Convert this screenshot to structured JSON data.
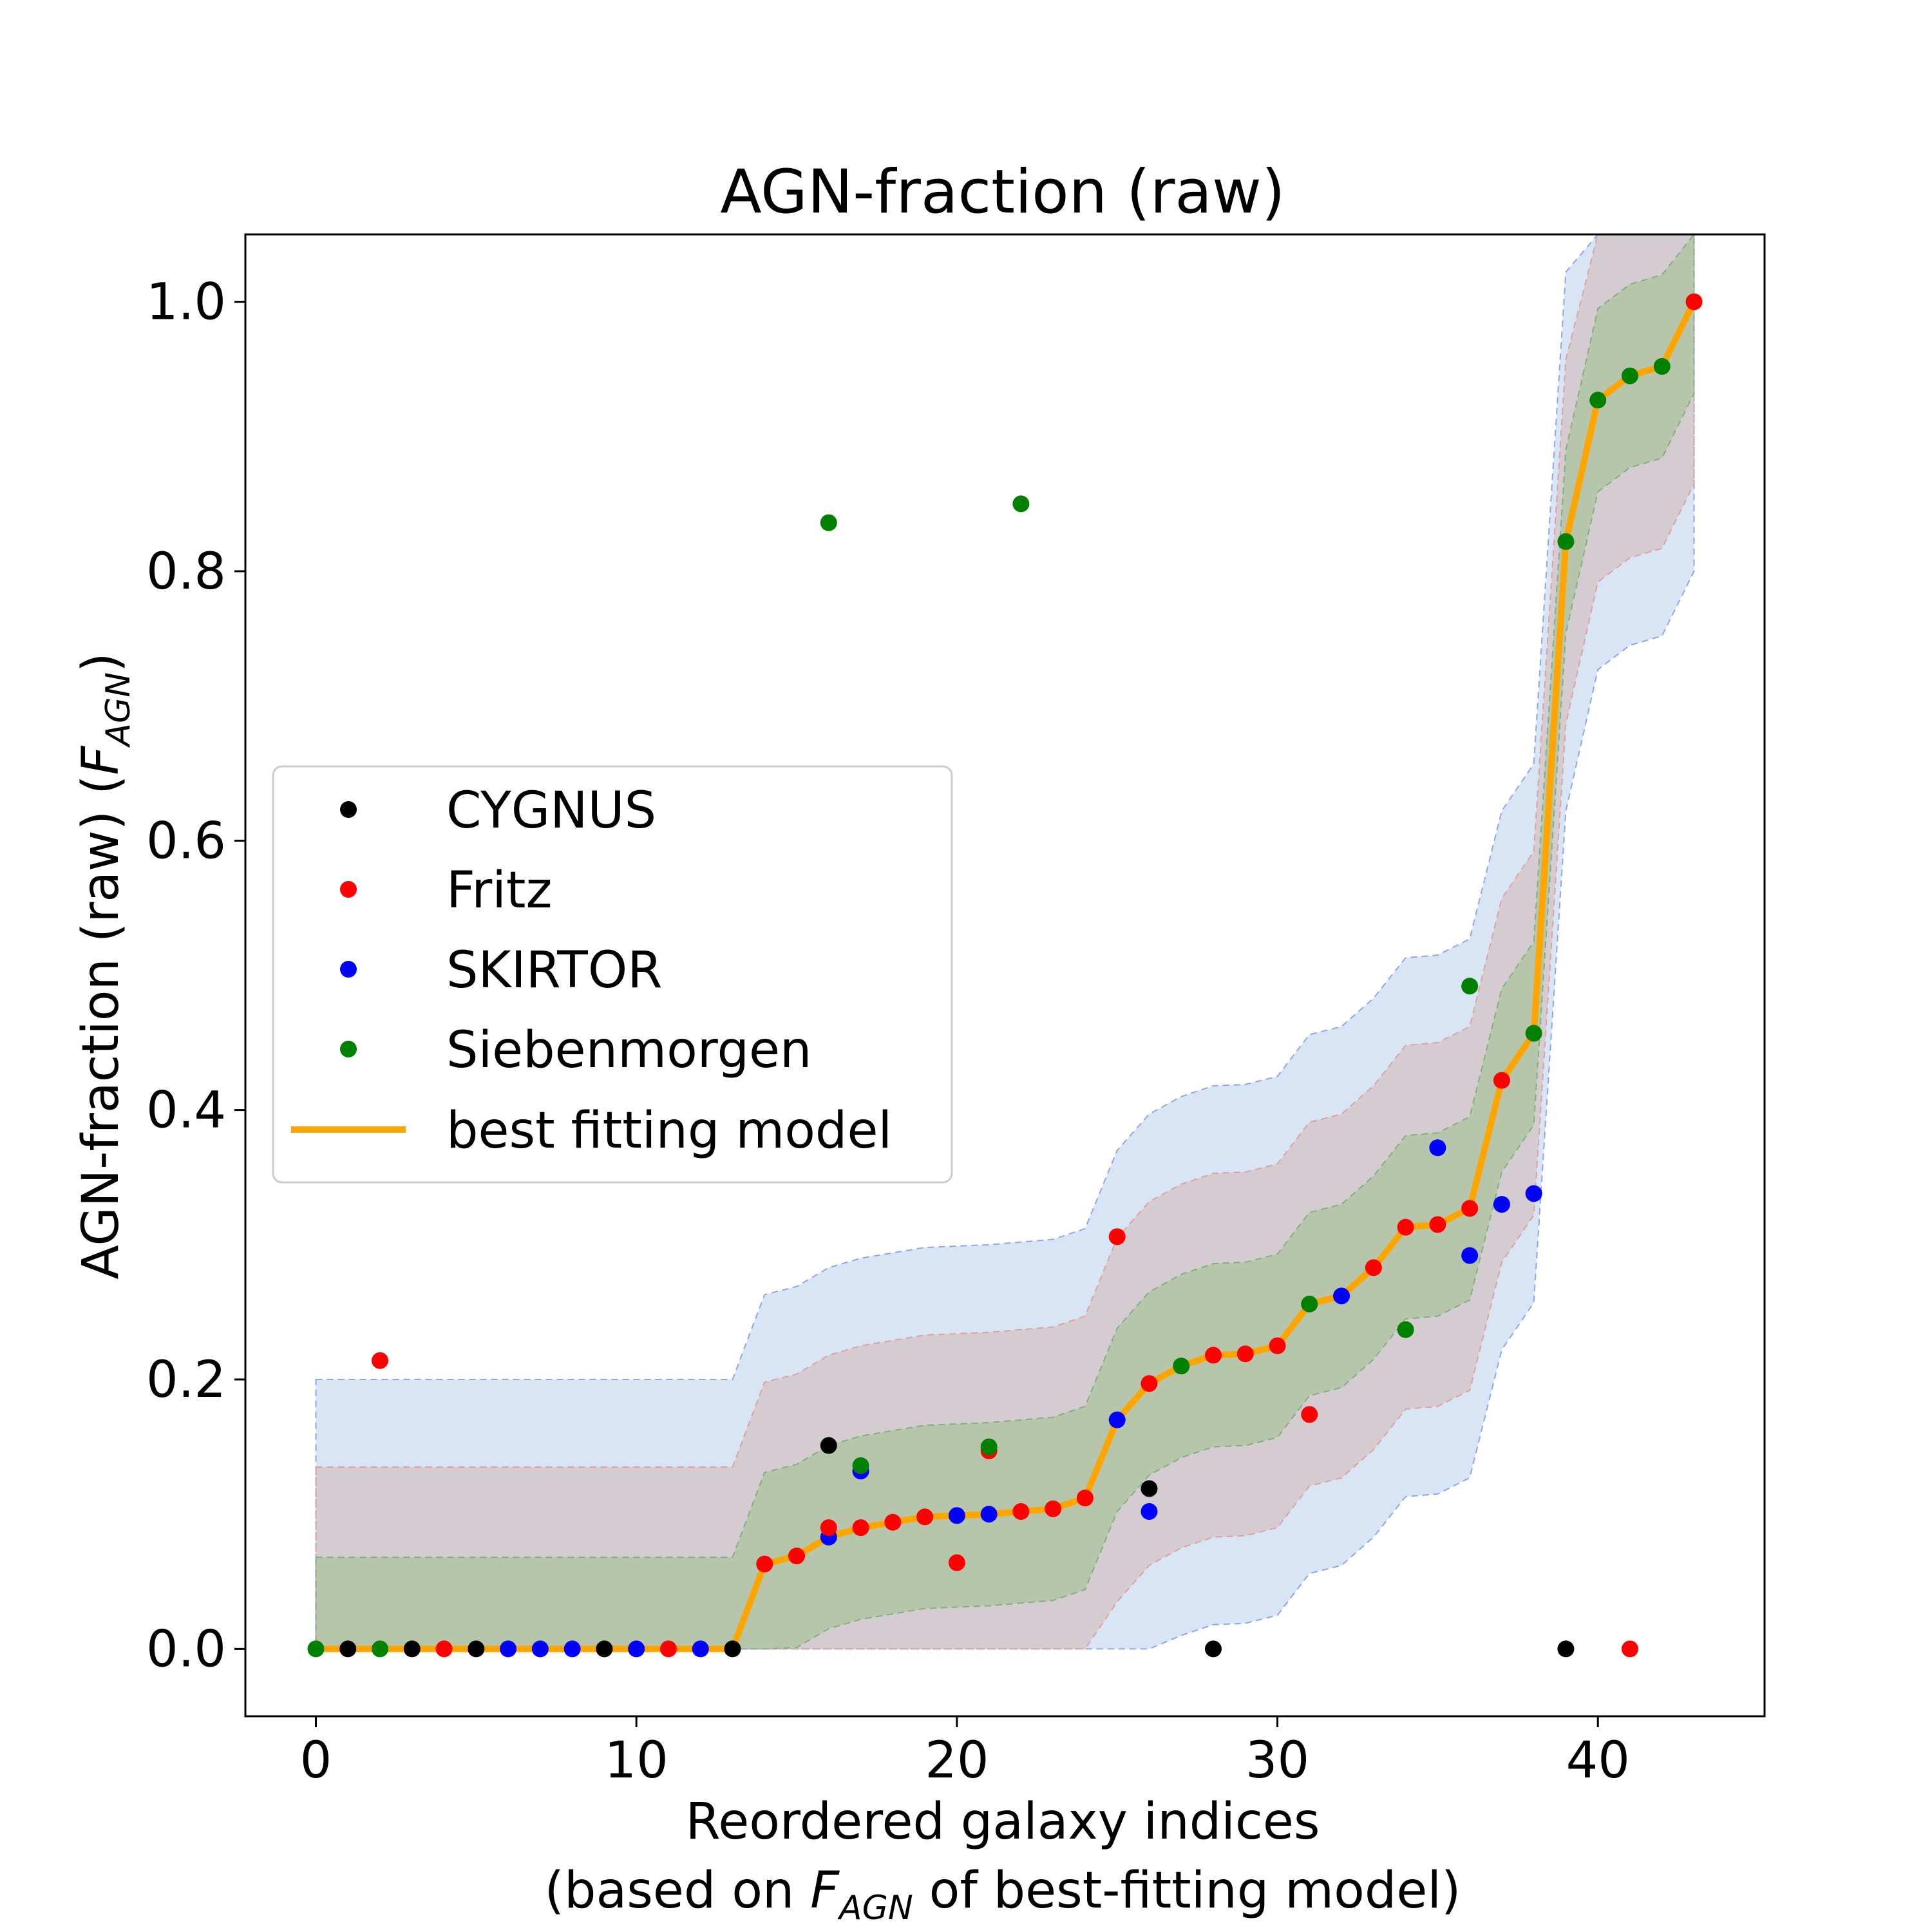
{
  "chart_data": {
    "type": "scatter",
    "title": "AGN-fraction (raw)",
    "xlabel_line1": "Reordered galaxy indices",
    "xlabel_line2_pre": "(based on ",
    "xlabel_line2_sym": "F",
    "xlabel_line2_sub": "AGN",
    "xlabel_line2_post": " of best-fitting model)",
    "ylabel_pre": "AGN-fraction (raw) (",
    "ylabel_sym": "F",
    "ylabel_sub": "AGN",
    "ylabel_post": ")",
    "xlim": [
      -2.2,
      45.2
    ],
    "ylim": [
      -0.05,
      1.05
    ],
    "xticks": [
      0,
      10,
      20,
      30,
      40
    ],
    "xtick_labels": [
      "0",
      "10",
      "20",
      "30",
      "40"
    ],
    "yticks": [
      0.0,
      0.2,
      0.4,
      0.6,
      0.8,
      1.0
    ],
    "ytick_labels": [
      "0.0",
      "0.2",
      "0.4",
      "0.6",
      "0.8",
      "1.0"
    ],
    "grid": false,
    "legend_position": "center-left",
    "colors": {
      "CYGNUS": "#000000",
      "Fritz": "#ff0000",
      "SKIRTOR": "#0000ff",
      "Siebenmorgen": "#008000",
      "best": "#ffa500",
      "band_outer": "#a8c6e6",
      "band_middle": "#d4b8b4",
      "band_inner": "#a4c090"
    },
    "legend": [
      {
        "label": "CYGNUS",
        "kind": "point",
        "color": "#000000"
      },
      {
        "label": "Fritz",
        "kind": "point",
        "color": "#ff0000"
      },
      {
        "label": "SKIRTOR",
        "kind": "point",
        "color": "#0000ff"
      },
      {
        "label": "Siebenmorgen",
        "kind": "point",
        "color": "#008000"
      },
      {
        "label": "best fitting model",
        "kind": "line",
        "color": "#ffa500"
      }
    ],
    "best_fit": {
      "name": "best fitting model",
      "x": [
        0,
        1,
        2,
        3,
        4,
        5,
        6,
        7,
        8,
        9,
        10,
        11,
        12,
        13,
        14,
        15,
        16,
        17,
        18,
        19,
        20,
        21,
        22,
        23,
        24,
        25,
        26,
        27,
        28,
        29,
        30,
        31,
        32,
        33,
        34,
        35,
        36,
        37,
        38,
        39,
        40,
        41,
        42,
        43
      ],
      "y": [
        0,
        0,
        0,
        0,
        0,
        0,
        0,
        0,
        0,
        0,
        0,
        0,
        0,
        0,
        0.063,
        0.069,
        0.083,
        0.09,
        0.094,
        0.098,
        0.099,
        0.1,
        0.102,
        0.104,
        0.112,
        0.17,
        0.197,
        0.21,
        0.218,
        0.219,
        0.225,
        0.256,
        0.262,
        0.283,
        0.313,
        0.315,
        0.327,
        0.422,
        0.457,
        0.822,
        0.927,
        0.945,
        0.952,
        1.0
      ]
    },
    "points": [
      {
        "x": 0,
        "y": 0,
        "model": "Siebenmorgen"
      },
      {
        "x": 1,
        "y": 0,
        "model": "CYGNUS"
      },
      {
        "x": 2,
        "y": 0,
        "model": "Siebenmorgen"
      },
      {
        "x": 2,
        "y": 0.214,
        "model": "Fritz"
      },
      {
        "x": 3,
        "y": 0,
        "model": "CYGNUS"
      },
      {
        "x": 4,
        "y": 0,
        "model": "Fritz"
      },
      {
        "x": 5,
        "y": 0,
        "model": "CYGNUS"
      },
      {
        "x": 6,
        "y": 0,
        "model": "SKIRTOR"
      },
      {
        "x": 7,
        "y": 0,
        "model": "SKIRTOR"
      },
      {
        "x": 8,
        "y": 0,
        "model": "SKIRTOR"
      },
      {
        "x": 9,
        "y": 0,
        "model": "CYGNUS"
      },
      {
        "x": 10,
        "y": 0,
        "model": "SKIRTOR"
      },
      {
        "x": 11,
        "y": 0,
        "model": "Fritz"
      },
      {
        "x": 12,
        "y": 0,
        "model": "SKIRTOR"
      },
      {
        "x": 13,
        "y": 0,
        "model": "CYGNUS"
      },
      {
        "x": 14,
        "y": 0.063,
        "model": "Fritz"
      },
      {
        "x": 15,
        "y": 0.069,
        "model": "Fritz"
      },
      {
        "x": 16,
        "y": 0.083,
        "model": "SKIRTOR"
      },
      {
        "x": 16,
        "y": 0.09,
        "model": "Fritz"
      },
      {
        "x": 16,
        "y": 0.151,
        "model": "CYGNUS"
      },
      {
        "x": 16,
        "y": 0.836,
        "model": "Siebenmorgen"
      },
      {
        "x": 17,
        "y": 0.09,
        "model": "Fritz"
      },
      {
        "x": 17,
        "y": 0.132,
        "model": "SKIRTOR"
      },
      {
        "x": 17,
        "y": 0.136,
        "model": "Siebenmorgen"
      },
      {
        "x": 18,
        "y": 0.094,
        "model": "Fritz"
      },
      {
        "x": 19,
        "y": 0.098,
        "model": "Fritz"
      },
      {
        "x": 20,
        "y": 0.099,
        "model": "SKIRTOR"
      },
      {
        "x": 20,
        "y": 0.064,
        "model": "Fritz"
      },
      {
        "x": 21,
        "y": 0.1,
        "model": "SKIRTOR"
      },
      {
        "x": 21,
        "y": 0.147,
        "model": "Fritz"
      },
      {
        "x": 21,
        "y": 0.15,
        "model": "Siebenmorgen"
      },
      {
        "x": 22,
        "y": 0.102,
        "model": "Fritz"
      },
      {
        "x": 22,
        "y": 0.85,
        "model": "Siebenmorgen"
      },
      {
        "x": 23,
        "y": 0.104,
        "model": "Fritz"
      },
      {
        "x": 24,
        "y": 0.112,
        "model": "Fritz"
      },
      {
        "x": 25,
        "y": 0.17,
        "model": "SKIRTOR"
      },
      {
        "x": 25,
        "y": 0.306,
        "model": "Fritz"
      },
      {
        "x": 26,
        "y": 0.197,
        "model": "Fritz"
      },
      {
        "x": 26,
        "y": 0.119,
        "model": "CYGNUS"
      },
      {
        "x": 26,
        "y": 0.102,
        "model": "SKIRTOR"
      },
      {
        "x": 27,
        "y": 0.21,
        "model": "Siebenmorgen"
      },
      {
        "x": 28,
        "y": 0.218,
        "model": "Fritz"
      },
      {
        "x": 28,
        "y": 0,
        "model": "CYGNUS"
      },
      {
        "x": 29,
        "y": 0.219,
        "model": "Fritz"
      },
      {
        "x": 30,
        "y": 0.225,
        "model": "Fritz"
      },
      {
        "x": 31,
        "y": 0.256,
        "model": "Siebenmorgen"
      },
      {
        "x": 31,
        "y": 0.174,
        "model": "Fritz"
      },
      {
        "x": 32,
        "y": 0.262,
        "model": "SKIRTOR"
      },
      {
        "x": 33,
        "y": 0.283,
        "model": "Fritz"
      },
      {
        "x": 34,
        "y": 0.313,
        "model": "Fritz"
      },
      {
        "x": 34,
        "y": 0.237,
        "model": "Siebenmorgen"
      },
      {
        "x": 35,
        "y": 0.315,
        "model": "Fritz"
      },
      {
        "x": 35,
        "y": 0.372,
        "model": "SKIRTOR"
      },
      {
        "x": 36,
        "y": 0.327,
        "model": "Fritz"
      },
      {
        "x": 36,
        "y": 0.292,
        "model": "SKIRTOR"
      },
      {
        "x": 36,
        "y": 0.492,
        "model": "Siebenmorgen"
      },
      {
        "x": 37,
        "y": 0.422,
        "model": "Fritz"
      },
      {
        "x": 37,
        "y": 0.33,
        "model": "SKIRTOR"
      },
      {
        "x": 38,
        "y": 0.457,
        "model": "Siebenmorgen"
      },
      {
        "x": 38,
        "y": 0.338,
        "model": "SKIRTOR"
      },
      {
        "x": 39,
        "y": 0.822,
        "model": "Siebenmorgen"
      },
      {
        "x": 39,
        "y": 0,
        "model": "CYGNUS"
      },
      {
        "x": 40,
        "y": 0.927,
        "model": "Siebenmorgen"
      },
      {
        "x": 41,
        "y": 0.945,
        "model": "Siebenmorgen"
      },
      {
        "x": 41,
        "y": 0,
        "model": "Fritz"
      },
      {
        "x": 42,
        "y": 0.952,
        "model": "Siebenmorgen"
      },
      {
        "x": 43,
        "y": 1.0,
        "model": "Fritz"
      }
    ],
    "bands": [
      {
        "name": "outer",
        "halfwidth": 0.2
      },
      {
        "name": "middle",
        "halfwidth": 0.135
      },
      {
        "name": "inner",
        "halfwidth": 0.068
      }
    ]
  }
}
